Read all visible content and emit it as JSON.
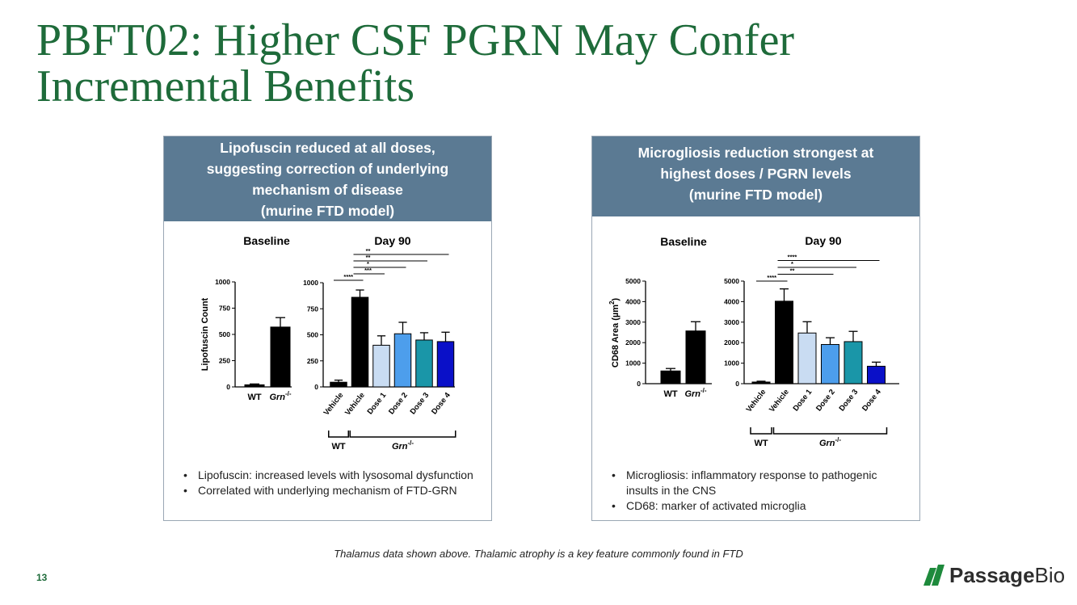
{
  "title": {
    "line1": "PBFT02: Higher CSF PGRN May Confer",
    "line2": "Incremental Benefits"
  },
  "left_panel": {
    "header": [
      "Lipofuscin reduced at all doses,",
      "suggesting correction of underlying",
      "mechanism of disease",
      "(murine FTD model)"
    ],
    "bullets": [
      "Lipofuscin: increased levels with lysosomal dysfunction",
      "Correlated with underlying mechanism of FTD-GRN"
    ]
  },
  "right_panel": {
    "header": [
      "Microgliosis reduction strongest at",
      "highest doses / PGRN levels",
      "(murine FTD model)"
    ],
    "bullets": [
      "Microgliosis: inflammatory response to pathogenic insults in the CNS",
      "CD68: marker of activated microglia"
    ]
  },
  "footnote": "Thalamus data shown above. Thalamic atrophy is a key feature commonly found in FTD",
  "page_number": "13",
  "logo": {
    "part1": "Passage",
    "part2": "Bio",
    "color_green": "#1e8a3c",
    "color_dark": "#2d2d2d"
  },
  "colors": {
    "title": "#1e6b3a",
    "header_bg": "#5b7a93",
    "black": "#000000",
    "dose1": "#c9dcf2",
    "dose2": "#4d9eec",
    "dose3": "#1a96a8",
    "dose4": "#0a10c8"
  },
  "chart_data": [
    {
      "type": "bar",
      "title": "Baseline",
      "ylabel": "Lipofuscin Count",
      "ylim": [
        0,
        1000
      ],
      "yticks": [
        0,
        250,
        500,
        750,
        1000
      ],
      "categories": [
        "WT",
        "Grn"
      ],
      "category_superscript": [
        "",
        "-/-"
      ],
      "values": [
        20,
        570
      ],
      "errors": [
        8,
        90
      ],
      "bar_colors": [
        "#000000",
        "#000000"
      ]
    },
    {
      "type": "bar",
      "title": "Day 90",
      "ylim": [
        0,
        1000
      ],
      "yticks": [
        0,
        250,
        500,
        750,
        1000
      ],
      "categories": [
        "Vehicle",
        "Vehicle",
        "Dose 1",
        "Dose 2",
        "Dose 3",
        "Dose 4"
      ],
      "values": [
        45,
        860,
        400,
        510,
        450,
        435
      ],
      "errors": [
        20,
        70,
        90,
        110,
        70,
        90
      ],
      "bar_colors": [
        "#000000",
        "#000000",
        "#c9dcf2",
        "#4d9eec",
        "#1a96a8",
        "#0a10c8"
      ],
      "groups": [
        {
          "label": "WT",
          "superscript": ""
        },
        {
          "label": "Grn",
          "superscript": "-/-"
        }
      ],
      "significance": [
        {
          "label": "****",
          "from": 0,
          "to": 1
        },
        {
          "label": "***",
          "from": 1,
          "to": 2
        },
        {
          "label": "*",
          "from": 1,
          "to": 3
        },
        {
          "label": "**",
          "from": 1,
          "to": 4
        },
        {
          "label": "**",
          "from": 1,
          "to": 5
        }
      ]
    },
    {
      "type": "bar",
      "title": "Baseline",
      "ylabel": "CD68 Area (µm",
      "ylabel_sup": "2",
      "ylabel_end": ")",
      "ylim": [
        0,
        5000
      ],
      "yticks": [
        0,
        1000,
        2000,
        3000,
        4000,
        5000
      ],
      "categories": [
        "WT",
        "Grn"
      ],
      "category_superscript": [
        "",
        "-/-"
      ],
      "values": [
        620,
        2570
      ],
      "errors": [
        120,
        450
      ],
      "bar_colors": [
        "#000000",
        "#000000"
      ]
    },
    {
      "type": "bar",
      "title": "Day 90",
      "ylim": [
        0,
        5000
      ],
      "yticks": [
        0,
        1000,
        2000,
        3000,
        4000,
        5000
      ],
      "categories": [
        "Vehicle",
        "Vehicle",
        "Dose 1",
        "Dose 2",
        "Dose 3",
        "Dose 4"
      ],
      "values": [
        80,
        4020,
        2470,
        1910,
        2050,
        850
      ],
      "errors": [
        40,
        600,
        550,
        330,
        500,
        200
      ],
      "bar_colors": [
        "#000000",
        "#000000",
        "#c9dcf2",
        "#4d9eec",
        "#1a96a8",
        "#0a10c8"
      ],
      "groups": [
        {
          "label": "WT",
          "superscript": ""
        },
        {
          "label": "Grn",
          "superscript": "-/-"
        }
      ],
      "significance": [
        {
          "label": "****",
          "from": 0,
          "to": 1
        },
        {
          "label": "**",
          "from": 1,
          "to": 3
        },
        {
          "label": "*",
          "from": 1,
          "to": 4
        },
        {
          "label": "****",
          "from": 1,
          "to": 5
        }
      ]
    }
  ]
}
